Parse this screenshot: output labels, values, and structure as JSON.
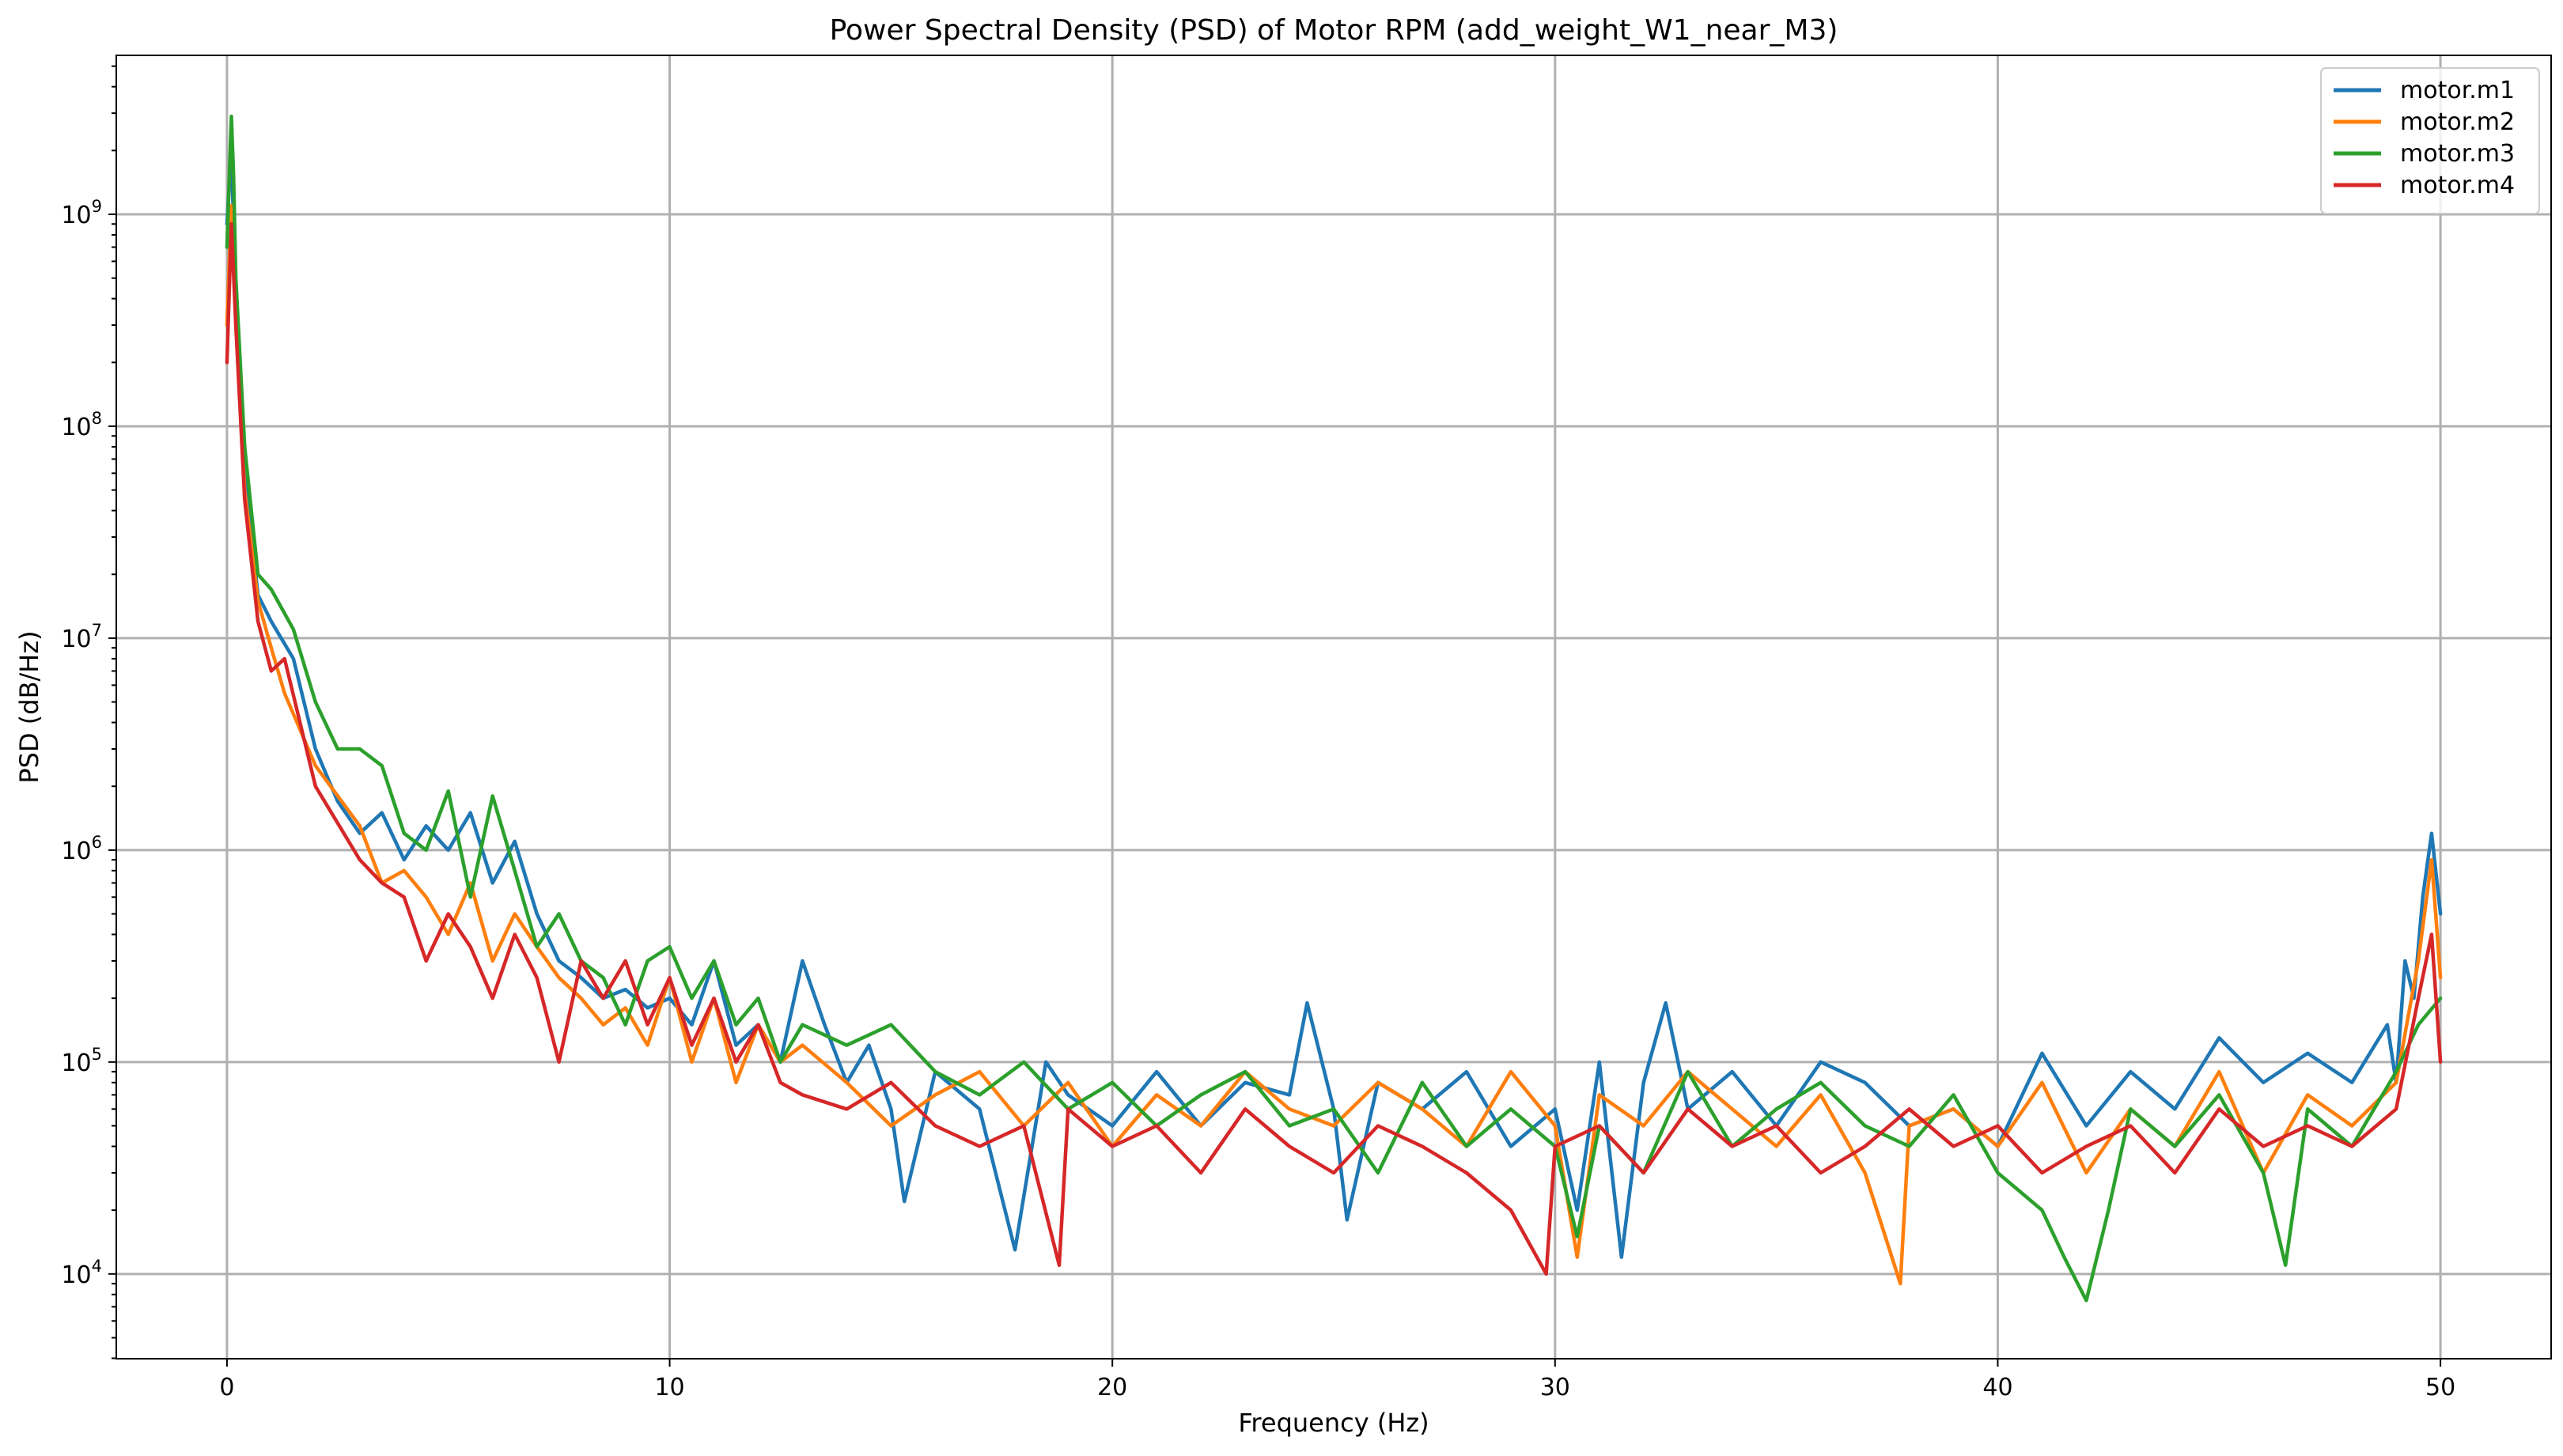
{
  "chart_data": {
    "type": "line",
    "title": "Power Spectral Density (PSD) of Motor RPM (add_weight_W1_near_M3)",
    "xlabel": "Frequency (Hz)",
    "ylabel": "PSD (dB/Hz)",
    "xlim": [
      -2.5,
      52.5
    ],
    "ylim_log10": [
      3.6,
      9.75
    ],
    "yscale": "log",
    "grid": true,
    "legend_position": "top-right",
    "xticks": [
      0,
      10,
      20,
      30,
      40,
      50
    ],
    "yticks": [
      {
        "base": "10",
        "exp": "4",
        "value": 10000
      },
      {
        "base": "10",
        "exp": "5",
        "value": 100000
      },
      {
        "base": "10",
        "exp": "6",
        "value": 1000000
      },
      {
        "base": "10",
        "exp": "7",
        "value": 10000000
      },
      {
        "base": "10",
        "exp": "8",
        "value": 100000000
      },
      {
        "base": "10",
        "exp": "9",
        "value": 1000000000
      }
    ],
    "series": [
      {
        "name": "motor.m1",
        "color": "#1f77b4",
        "x": [
          0,
          0.1,
          0.2,
          0.4,
          0.7,
          1,
          1.5,
          2,
          2.5,
          3,
          3.5,
          4,
          4.5,
          5,
          5.5,
          6,
          6.5,
          7,
          7.5,
          8,
          8.5,
          9,
          9.5,
          10,
          10.5,
          11,
          11.5,
          12,
          12.5,
          13,
          13.5,
          14,
          14.5,
          15,
          15.3,
          16,
          17,
          17.8,
          18.5,
          19,
          20,
          21,
          22,
          23,
          24,
          24.4,
          25,
          25.3,
          26,
          27,
          28,
          29,
          30,
          30.5,
          31,
          31.5,
          32,
          32.5,
          33,
          34,
          35,
          36,
          37,
          38,
          39,
          40,
          41,
          42,
          43,
          44,
          45,
          46,
          47,
          48,
          48.8,
          49,
          49.2,
          49.4,
          49.6,
          49.8,
          50
        ],
        "y": [
          900000000,
          2000000000,
          400000000,
          60000000,
          16000000,
          12000000,
          8000000,
          3000000,
          1700000,
          1200000,
          1500000,
          900000,
          1300000,
          1000000,
          1500000,
          700000,
          1100000,
          500000,
          300000,
          250000,
          200000,
          220000,
          180000,
          200000,
          150000,
          300000,
          120000,
          150000,
          100000,
          300000,
          150000,
          80000,
          120000,
          60000,
          22000,
          90000,
          60000,
          13000,
          100000,
          70000,
          50000,
          90000,
          50000,
          80000,
          70000,
          190000,
          60000,
          18000,
          80000,
          60000,
          90000,
          40000,
          60000,
          20000,
          100000,
          12000,
          80000,
          190000,
          60000,
          90000,
          50000,
          100000,
          80000,
          50000,
          60000,
          40000,
          110000,
          50000,
          90000,
          60000,
          130000,
          80000,
          110000,
          80000,
          150000,
          80000,
          300000,
          200000,
          600000,
          1200000,
          500000
        ]
      },
      {
        "name": "motor.m2",
        "color": "#ff7f0e",
        "x": [
          0,
          0.1,
          0.2,
          0.4,
          0.7,
          1,
          1.3,
          2,
          3,
          3.5,
          4,
          4.5,
          5,
          5.5,
          6,
          6.5,
          7,
          7.5,
          8,
          8.5,
          9,
          9.5,
          10,
          10.5,
          11,
          11.5,
          12,
          12.5,
          13,
          14,
          15,
          16,
          17,
          18,
          19,
          20,
          21,
          22,
          23,
          24,
          25,
          26,
          27,
          28,
          29,
          30,
          30.5,
          31,
          32,
          33,
          34,
          35,
          36,
          37,
          37.8,
          38,
          39,
          40,
          41,
          42,
          43,
          44,
          45,
          46,
          47,
          48,
          49,
          49.5,
          49.8,
          50
        ],
        "y": [
          300000000,
          1100000000,
          300000000,
          50000000,
          15000000,
          9000000,
          5500000,
          2500000,
          1300000,
          700000,
          800000,
          600000,
          400000,
          700000,
          300000,
          500000,
          350000,
          250000,
          200000,
          150000,
          180000,
          120000,
          250000,
          100000,
          200000,
          80000,
          150000,
          100000,
          120000,
          80000,
          50000,
          70000,
          90000,
          50000,
          80000,
          40000,
          70000,
          50000,
          90000,
          60000,
          50000,
          80000,
          60000,
          40000,
          90000,
          50000,
          12000,
          70000,
          50000,
          90000,
          60000,
          40000,
          70000,
          30000,
          9000,
          50000,
          60000,
          40000,
          80000,
          30000,
          60000,
          40000,
          90000,
          30000,
          70000,
          50000,
          80000,
          300000,
          900000,
          250000
        ]
      },
      {
        "name": "motor.m3",
        "color": "#2ca02c",
        "x": [
          0,
          0.1,
          0.15,
          0.2,
          0.4,
          0.7,
          1,
          1.5,
          2,
          2.5,
          3,
          3.5,
          4,
          4.5,
          5,
          5.5,
          6,
          6.5,
          7,
          7.5,
          8,
          8.5,
          9,
          9.5,
          10,
          10.5,
          11,
          11.5,
          12,
          12.5,
          13,
          14,
          15,
          16,
          17,
          18,
          19,
          20,
          21,
          22,
          23,
          24,
          25,
          26,
          27,
          28,
          29,
          30,
          30.5,
          31,
          32,
          33,
          34,
          35,
          36,
          37,
          38,
          39,
          40,
          41,
          41.5,
          42,
          42.5,
          43,
          44,
          45,
          46,
          46.5,
          47,
          48,
          49,
          49.5,
          50
        ],
        "y": [
          700000000,
          2900000000,
          1500000000,
          500000000,
          80000000,
          20000000,
          17000000,
          11000000,
          5000000,
          3000000,
          3000000,
          2500000,
          1200000,
          1000000,
          1900000,
          600000,
          1800000,
          800000,
          350000,
          500000,
          300000,
          250000,
          150000,
          300000,
          350000,
          200000,
          300000,
          150000,
          200000,
          100000,
          150000,
          120000,
          150000,
          90000,
          70000,
          100000,
          60000,
          80000,
          50000,
          70000,
          90000,
          50000,
          60000,
          30000,
          80000,
          40000,
          60000,
          40000,
          15000,
          50000,
          30000,
          90000,
          40000,
          60000,
          80000,
          50000,
          40000,
          70000,
          30000,
          20000,
          12000,
          7500,
          20000,
          60000,
          40000,
          70000,
          30000,
          11000,
          60000,
          40000,
          90000,
          150000,
          200000
        ]
      },
      {
        "name": "motor.m4",
        "color": "#d62728",
        "x": [
          0,
          0.1,
          0.2,
          0.4,
          0.7,
          1,
          1.3,
          2,
          3,
          3.5,
          4,
          4.5,
          5,
          5.5,
          6,
          6.5,
          7,
          7.5,
          8,
          8.5,
          9,
          9.5,
          10,
          10.5,
          11,
          11.5,
          12,
          12.5,
          13,
          14,
          15,
          16,
          17,
          18,
          18.8,
          19,
          20,
          21,
          22,
          23,
          24,
          25,
          26,
          27,
          28,
          29,
          29.8,
          30,
          31,
          32,
          33,
          34,
          35,
          36,
          37,
          38,
          39,
          40,
          41,
          42,
          43,
          44,
          45,
          46,
          47,
          48,
          49,
          49.5,
          49.8,
          50
        ],
        "y": [
          200000000,
          900000000,
          300000000,
          45000000,
          12000000,
          7000000,
          8000000,
          2000000,
          900000,
          700000,
          600000,
          300000,
          500000,
          350000,
          200000,
          400000,
          250000,
          100000,
          300000,
          200000,
          300000,
          150000,
          250000,
          120000,
          200000,
          100000,
          150000,
          80000,
          70000,
          60000,
          80000,
          50000,
          40000,
          50000,
          11000,
          60000,
          40000,
          50000,
          30000,
          60000,
          40000,
          30000,
          50000,
          40000,
          30000,
          20000,
          10000,
          40000,
          50000,
          30000,
          60000,
          40000,
          50000,
          30000,
          40000,
          60000,
          40000,
          50000,
          30000,
          40000,
          50000,
          30000,
          60000,
          40000,
          50000,
          40000,
          60000,
          200000,
          400000,
          100000
        ]
      }
    ]
  }
}
